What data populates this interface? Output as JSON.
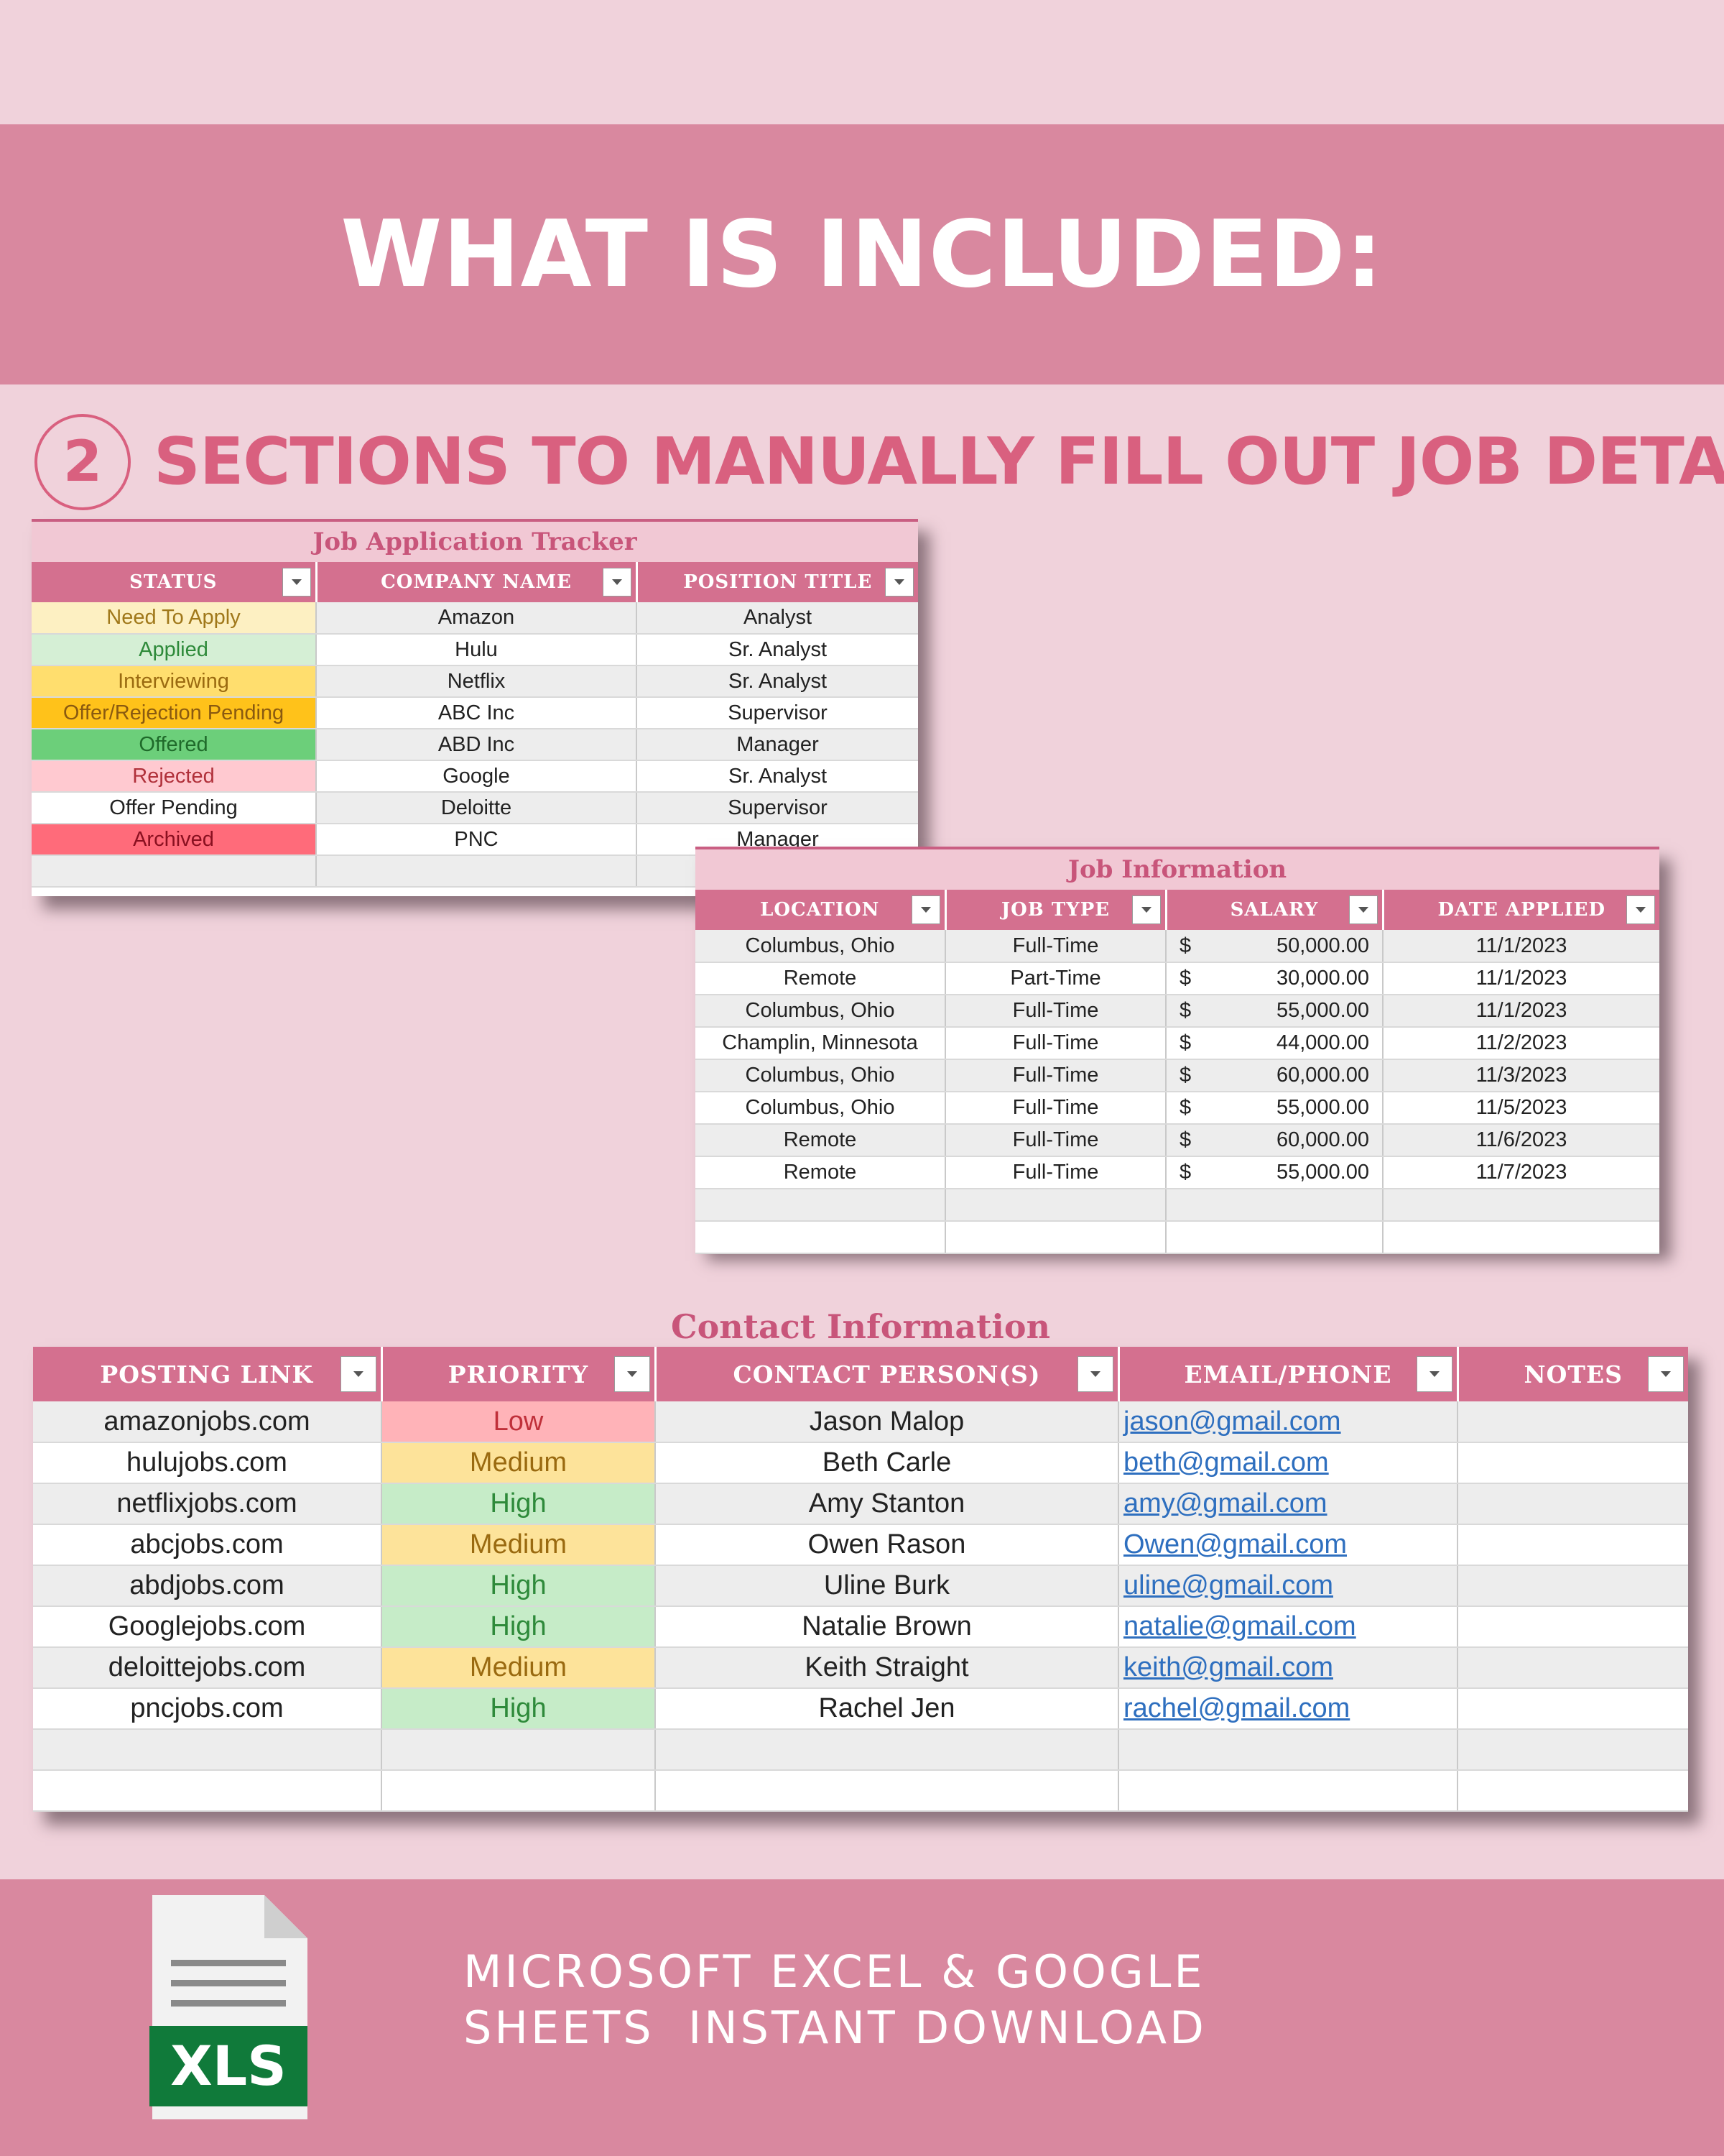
{
  "banner": {
    "title": "WHAT IS INCLUDED:"
  },
  "subtitle": {
    "number": "2",
    "text": "SECTIONS TO MANUALLY FILL OUT JOB DETAIL"
  },
  "tracker": {
    "title": "Job Application Tracker",
    "headers": [
      "STATUS",
      "COMPANY NAME",
      "POSITION TITLE"
    ],
    "rows": [
      {
        "status": "Need To Apply",
        "status_bg": "#fdf0c2",
        "status_color": "#a0781a",
        "company": "Amazon",
        "position": "Analyst"
      },
      {
        "status": "Applied",
        "status_bg": "#d5efd5",
        "status_color": "#2e8a3a",
        "company": "Hulu",
        "position": "Sr. Analyst"
      },
      {
        "status": "Interviewing",
        "status_bg": "#ffde6e",
        "status_color": "#9a6a10",
        "company": "Netflix",
        "position": "Sr. Analyst"
      },
      {
        "status": "Offer/Rejection Pending",
        "status_bg": "#ffc21a",
        "status_color": "#8a5a10",
        "company": "ABC Inc",
        "position": "Supervisor"
      },
      {
        "status": "Offered",
        "status_bg": "#6ccf7a",
        "status_color": "#1f6a2a",
        "company": "ABD Inc",
        "position": "Manager"
      },
      {
        "status": "Rejected",
        "status_bg": "#ffc9d0",
        "status_color": "#b0303a",
        "company": "Google",
        "position": "Sr. Analyst"
      },
      {
        "status": "Offer Pending",
        "status_bg": "#ffffff",
        "status_color": "#222222",
        "company": "Deloitte",
        "position": "Supervisor"
      },
      {
        "status": "Archived",
        "status_bg": "#ff6b7a",
        "status_color": "#8a1020",
        "company": "PNC",
        "position": "Manager"
      },
      {
        "status": "",
        "status_bg": "#ededed",
        "status_color": "#222222",
        "company": "",
        "position": ""
      }
    ]
  },
  "jobinfo": {
    "title": "Job Information",
    "headers": [
      "LOCATION",
      "JOB TYPE",
      "SALARY",
      "DATE APPLIED"
    ],
    "rows": [
      {
        "location": "Columbus, Ohio",
        "type": "Full-Time",
        "currency": "$",
        "salary": "50,000.00",
        "date": "11/1/2023"
      },
      {
        "location": "Remote",
        "type": "Part-Time",
        "currency": "$",
        "salary": "30,000.00",
        "date": "11/1/2023"
      },
      {
        "location": "Columbus, Ohio",
        "type": "Full-Time",
        "currency": "$",
        "salary": "55,000.00",
        "date": "11/1/2023"
      },
      {
        "location": "Champlin, Minnesota",
        "type": "Full-Time",
        "currency": "$",
        "salary": "44,000.00",
        "date": "11/2/2023"
      },
      {
        "location": "Columbus, Ohio",
        "type": "Full-Time",
        "currency": "$",
        "salary": "60,000.00",
        "date": "11/3/2023"
      },
      {
        "location": "Columbus, Ohio",
        "type": "Full-Time",
        "currency": "$",
        "salary": "55,000.00",
        "date": "11/5/2023"
      },
      {
        "location": "Remote",
        "type": "Full-Time",
        "currency": "$",
        "salary": "60,000.00",
        "date": "11/6/2023"
      },
      {
        "location": "Remote",
        "type": "Full-Time",
        "currency": "$",
        "salary": "55,000.00",
        "date": "11/7/2023"
      },
      {
        "location": "",
        "type": "",
        "currency": "",
        "salary": "",
        "date": ""
      },
      {
        "location": "",
        "type": "",
        "currency": "",
        "salary": "",
        "date": ""
      }
    ]
  },
  "contact": {
    "title": "Contact Information",
    "headers": [
      "POSTING LINK",
      "PRIORITY",
      "CONTACT PERSON(S)",
      "EMAIL/PHONE",
      "NOTES"
    ],
    "rows": [
      {
        "link": "amazonjobs.com",
        "priority": "Low",
        "pri_bg": "#ffb3b8",
        "pri_color": "#c0303a",
        "person": "Jason Malop",
        "email": "jason@gmail.com",
        "notes": ""
      },
      {
        "link": "hulujobs.com",
        "priority": "Medium",
        "pri_bg": "#fde39a",
        "pri_color": "#9a6a10",
        "person": "Beth Carle",
        "email": "beth@gmail.com",
        "notes": ""
      },
      {
        "link": "netflixjobs.com",
        "priority": "High",
        "pri_bg": "#c6ecc8",
        "pri_color": "#2e8a3a",
        "person": "Amy Stanton",
        "email": "amy@gmail.com",
        "notes": ""
      },
      {
        "link": "abcjobs.com",
        "priority": "Medium",
        "pri_bg": "#fde39a",
        "pri_color": "#9a6a10",
        "person": "Owen Rason",
        "email": "Owen@gmail.com",
        "notes": ""
      },
      {
        "link": "abdjobs.com",
        "priority": "High",
        "pri_bg": "#c6ecc8",
        "pri_color": "#2e8a3a",
        "person": "Uline Burk",
        "email": "uline@gmail.com",
        "notes": ""
      },
      {
        "link": "Googlejobs.com",
        "priority": "High",
        "pri_bg": "#c6ecc8",
        "pri_color": "#2e8a3a",
        "person": "Natalie Brown",
        "email": "natalie@gmail.com",
        "notes": ""
      },
      {
        "link": "deloittejobs.com",
        "priority": "Medium",
        "pri_bg": "#fde39a",
        "pri_color": "#9a6a10",
        "person": "Keith Straight",
        "email": "keith@gmail.com",
        "notes": ""
      },
      {
        "link": "pncjobs.com",
        "priority": "High",
        "pri_bg": "#c6ecc8",
        "pri_color": "#2e8a3a",
        "person": "Rachel Jen",
        "email": "rachel@gmail.com",
        "notes": ""
      },
      {
        "link": "",
        "priority": "",
        "pri_bg": "#ededed",
        "pri_color": "#222222",
        "person": "",
        "email": "",
        "notes": ""
      },
      {
        "link": "",
        "priority": "",
        "pri_bg": "#ffffff",
        "pri_color": "#222222",
        "person": "",
        "email": "",
        "notes": ""
      }
    ]
  },
  "footer": {
    "line1": "MICROSOFT EXCEL & GOOGLE",
    "line2": "SHEETS  INSTANT DOWNLOAD",
    "file_badge": "XLS",
    "file_icon": "spreadsheet-file-icon"
  }
}
